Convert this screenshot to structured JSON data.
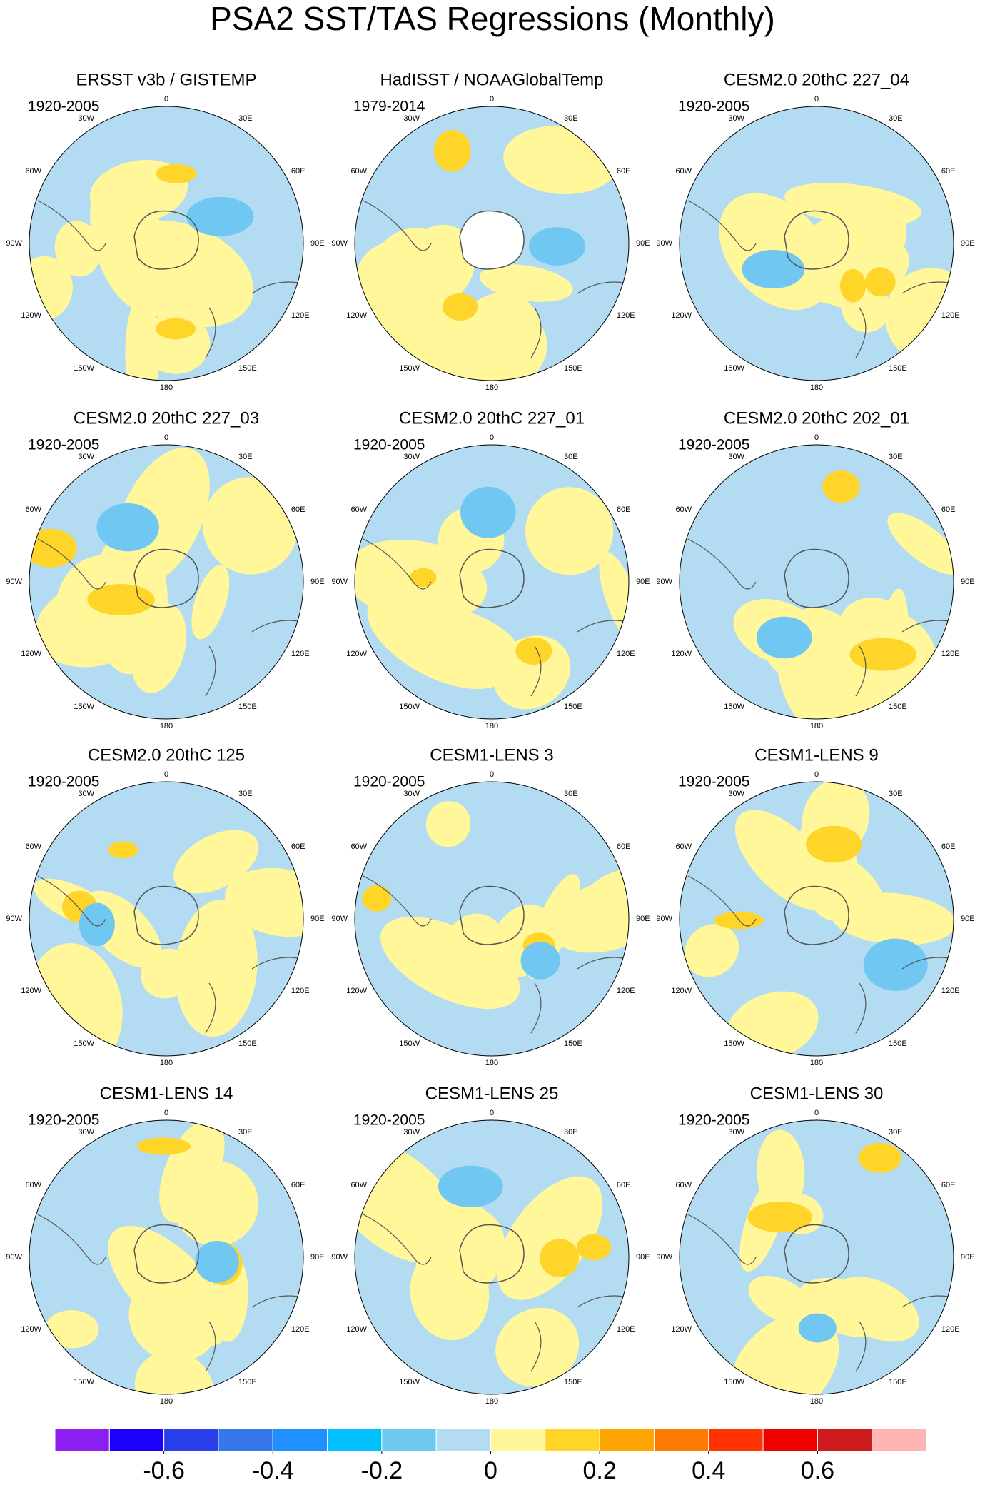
{
  "title": "PSA2 SST/TAS Regressions (Monthly)",
  "panels": [
    {
      "title": "ERSST v3b / GISTEMP",
      "period": "1920-2005"
    },
    {
      "title": "HadISST / NOAAGlobalTemp",
      "period": "1979-2014"
    },
    {
      "title": "CESM2.0 20thC 227_04",
      "period": "1920-2005"
    },
    {
      "title": "CESM2.0 20thC 227_03",
      "period": "1920-2005"
    },
    {
      "title": "CESM2.0 20thC 227_01",
      "period": "1920-2005"
    },
    {
      "title": "CESM2.0 20thC 202_01",
      "period": "1920-2005"
    },
    {
      "title": "CESM2.0 20thC 125",
      "period": "1920-2005"
    },
    {
      "title": "CESM1-LENS 3",
      "period": "1920-2005"
    },
    {
      "title": "CESM1-LENS 9",
      "period": "1920-2005"
    },
    {
      "title": "CESM1-LENS 14",
      "period": "1920-2005"
    },
    {
      "title": "CESM1-LENS 25",
      "period": "1920-2005"
    },
    {
      "title": "CESM1-LENS 30",
      "period": "1920-2005"
    }
  ],
  "lon_labels": [
    "0",
    "30E",
    "60E",
    "90E",
    "120E",
    "150E",
    "180",
    "150W",
    "120W",
    "90W",
    "60W",
    "30W"
  ],
  "colorbar": {
    "colors": [
      "#8a1ff0",
      "#1e00ff",
      "#2b3fe8",
      "#3478ea",
      "#1e90ff",
      "#00bfff",
      "#70c8f2",
      "#b3dcf2",
      "#fff79a",
      "#ffd52a",
      "#ffa500",
      "#ff7a00",
      "#ff3200",
      "#ee0000",
      "#cc1c1c",
      "#ffb4b4"
    ],
    "levels": [
      -0.7,
      -0.6,
      -0.5,
      -0.4,
      -0.3,
      -0.2,
      -0.1,
      0,
      0.1,
      0.2,
      0.3,
      0.4,
      0.5,
      0.6,
      0.7
    ],
    "ticks": [
      -0.6,
      -0.4,
      -0.2,
      0,
      0.2,
      0.4,
      0.6
    ]
  }
}
